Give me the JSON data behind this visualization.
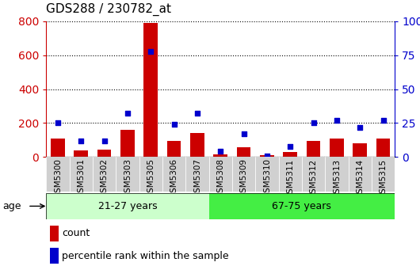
{
  "title": "GDS288 / 230782_at",
  "samples": [
    "GSM5300",
    "GSM5301",
    "GSM5302",
    "GSM5303",
    "GSM5305",
    "GSM5306",
    "GSM5307",
    "GSM5308",
    "GSM5309",
    "GSM5310",
    "GSM5311",
    "GSM5312",
    "GSM5313",
    "GSM5314",
    "GSM5315"
  ],
  "counts": [
    110,
    40,
    45,
    160,
    790,
    95,
    140,
    15,
    55,
    12,
    30,
    95,
    110,
    80,
    110
  ],
  "percentiles": [
    25,
    12,
    12,
    32,
    78,
    24,
    32,
    4,
    17,
    1,
    8,
    25,
    27,
    22,
    27
  ],
  "group1_label": "21-27 years",
  "group2_label": "67-75 years",
  "group1_count": 7,
  "group2_count": 8,
  "bar_color": "#cc0000",
  "dot_color": "#0000cc",
  "group1_bg": "#ccffcc",
  "group2_bg": "#44ee44",
  "ylim_left": [
    0,
    800
  ],
  "ylim_right": [
    0,
    100
  ],
  "yticks_left": [
    0,
    200,
    400,
    600,
    800
  ],
  "yticks_right": [
    0,
    25,
    50,
    75,
    100
  ],
  "legend_count": "count",
  "legend_pct": "percentile rank within the sample",
  "age_label": "age"
}
